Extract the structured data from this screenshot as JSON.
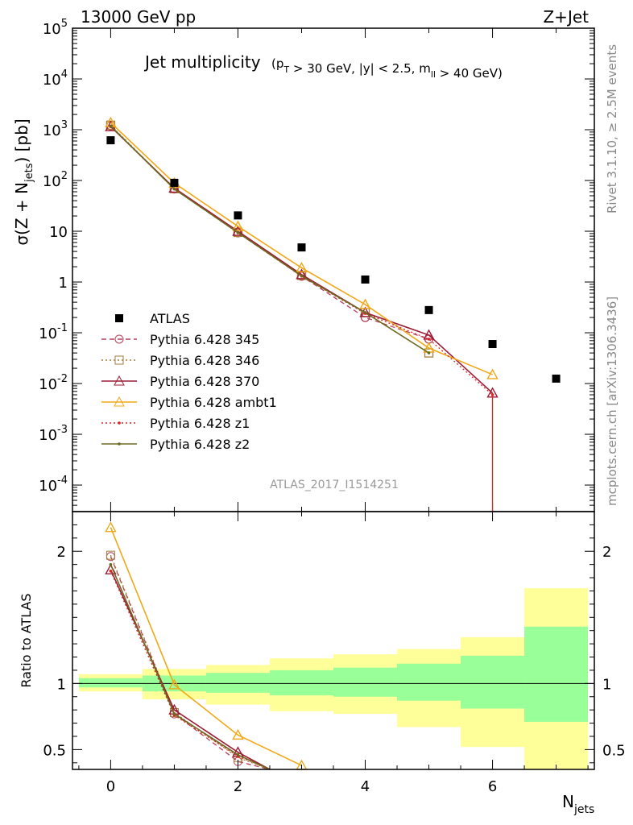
{
  "header": {
    "energy_label": "13000 GeV pp",
    "process_label": "Z+Jet",
    "side_label_top": "Rivet 3.1.10, ≥ 2.5M events",
    "side_label_bottom": "mcplots.cern.ch [arXiv:1306.3436]"
  },
  "chart_data": [
    {
      "type": "scatter",
      "panel": "main",
      "title": "Jet multiplicity",
      "subtitle": "(p_T > 30 GeV, |y| < 2.5, m_ll > 40 GeV)",
      "ylabel": "σ(Z + N_jets) [pb]",
      "analysis_tag": "ATLAS_2017_I1514251",
      "y_scale": "log",
      "ylim": [
        3e-05,
        100000.0
      ],
      "xlim": [
        -0.6,
        7.6
      ],
      "y_ticks": [
        {
          "v": 0.0001,
          "label": "10^-4"
        },
        {
          "v": 0.001,
          "label": "10^-3"
        },
        {
          "v": 0.01,
          "label": "10^-2"
        },
        {
          "v": 0.1,
          "label": "10^-1"
        },
        {
          "v": 1,
          "label": "1"
        },
        {
          "v": 10,
          "label": "10"
        },
        {
          "v": 100,
          "label": "10^2"
        },
        {
          "v": 1000,
          "label": "10^3"
        },
        {
          "v": 10000,
          "label": "10^4"
        },
        {
          "v": 100000,
          "label": "10^5"
        }
      ],
      "legend_position": "left",
      "data": {
        "name": "ATLAS",
        "x": [
          0,
          1,
          2,
          3,
          4,
          5,
          6,
          7
        ],
        "y": [
          620,
          90,
          20.5,
          4.8,
          1.12,
          0.28,
          0.06,
          0.0125
        ]
      },
      "series": [
        {
          "name": "Pythia 6.428 345",
          "color": "#b5405a",
          "style": "dashed",
          "marker": "circle",
          "x": [
            0,
            1,
            2,
            3,
            4,
            5
          ],
          "y": [
            1200,
            68,
            9.3,
            1.3,
            0.2,
            0.075
          ]
        },
        {
          "name": "Pythia 6.428 346",
          "color": "#a67c3c",
          "style": "dotted",
          "marker": "square",
          "x": [
            0,
            1,
            2,
            3,
            4,
            5
          ],
          "y": [
            1230,
            69,
            9.5,
            1.35,
            0.25,
            0.04
          ]
        },
        {
          "name": "Pythia 6.428 370",
          "color": "#9b1c36",
          "style": "solid",
          "marker": "triangle",
          "x": [
            0,
            1,
            2,
            3,
            4,
            5,
            6
          ],
          "y": [
            1150,
            71,
            10,
            1.4,
            0.25,
            0.09,
            0.0065
          ]
        },
        {
          "name": "Pythia 6.428 ambt1",
          "color": "#f0a818",
          "style": "solid",
          "marker": "triangle",
          "x": [
            0,
            1,
            2,
            3,
            4,
            5,
            6
          ],
          "y": [
            1380,
            89,
            12.5,
            1.9,
            0.36,
            0.05,
            0.015
          ]
        },
        {
          "name": "Pythia 6.428 z1",
          "color": "#dd2222",
          "style": "dotted",
          "marker": "dot",
          "x": [
            0,
            1,
            2,
            3,
            4,
            5,
            6
          ],
          "y": [
            1150,
            68,
            9.3,
            1.3,
            0.24,
            0.075,
            0.006
          ]
        },
        {
          "name": "Pythia 6.428 z2",
          "color": "#6b6b20",
          "style": "solid",
          "marker": "dot",
          "x": [
            0,
            1,
            2,
            3,
            4,
            5
          ],
          "y": [
            1180,
            68,
            9.4,
            1.32,
            0.25,
            0.04
          ]
        }
      ]
    },
    {
      "type": "line",
      "panel": "ratio",
      "ylabel": "Ratio to ATLAS",
      "xlabel": "N_jets",
      "ylim": [
        0.35,
        2.3
      ],
      "xlim": [
        -0.6,
        7.6
      ],
      "x_ticks": [
        0,
        2,
        4,
        6
      ],
      "y_ticks": [
        0.5,
        1,
        2
      ],
      "bands": [
        {
          "x0": -0.5,
          "x1": 0.5,
          "inner": [
            0.97,
            1.04
          ],
          "outer": [
            0.94,
            1.07
          ]
        },
        {
          "x0": 0.5,
          "x1": 1.5,
          "inner": [
            0.94,
            1.06
          ],
          "outer": [
            0.88,
            1.11
          ]
        },
        {
          "x0": 1.5,
          "x1": 2.5,
          "inner": [
            0.93,
            1.08
          ],
          "outer": [
            0.84,
            1.14
          ]
        },
        {
          "x0": 2.5,
          "x1": 3.5,
          "inner": [
            0.91,
            1.1
          ],
          "outer": [
            0.79,
            1.19
          ]
        },
        {
          "x0": 3.5,
          "x1": 4.5,
          "inner": [
            0.9,
            1.12
          ],
          "outer": [
            0.77,
            1.22
          ]
        },
        {
          "x0": 4.5,
          "x1": 5.5,
          "inner": [
            0.87,
            1.15
          ],
          "outer": [
            0.67,
            1.26
          ]
        },
        {
          "x0": 5.5,
          "x1": 6.5,
          "inner": [
            0.81,
            1.21
          ],
          "outer": [
            0.52,
            1.35
          ]
        },
        {
          "x0": 6.5,
          "x1": 7.5,
          "inner": [
            0.71,
            1.43
          ],
          "outer": [
            0.35,
            1.72
          ]
        }
      ],
      "series": [
        {
          "name": "Pythia 6.428 345",
          "x": [
            0,
            1,
            2,
            2.5
          ],
          "y": [
            1.96,
            0.77,
            0.41,
            0.28
          ]
        },
        {
          "name": "Pythia 6.428 346",
          "x": [
            0,
            1,
            2,
            2.5
          ],
          "y": [
            1.97,
            0.78,
            0.44,
            0.29
          ]
        },
        {
          "name": "Pythia 6.428 370",
          "x": [
            0,
            1,
            2,
            2.5
          ],
          "y": [
            1.86,
            0.8,
            0.48,
            0.33
          ]
        },
        {
          "name": "Pythia 6.428 ambt1",
          "x": [
            0,
            1,
            2,
            3
          ],
          "y": [
            2.18,
            0.99,
            0.61,
            0.38
          ]
        },
        {
          "name": "Pythia 6.428 z1",
          "x": [
            0,
            1,
            2,
            2.5
          ],
          "y": [
            1.85,
            0.76,
            0.45,
            0.3
          ]
        },
        {
          "name": "Pythia 6.428 z2",
          "x": [
            0,
            1,
            2,
            2.5
          ],
          "y": [
            1.9,
            0.77,
            0.46,
            0.3
          ]
        }
      ]
    }
  ]
}
